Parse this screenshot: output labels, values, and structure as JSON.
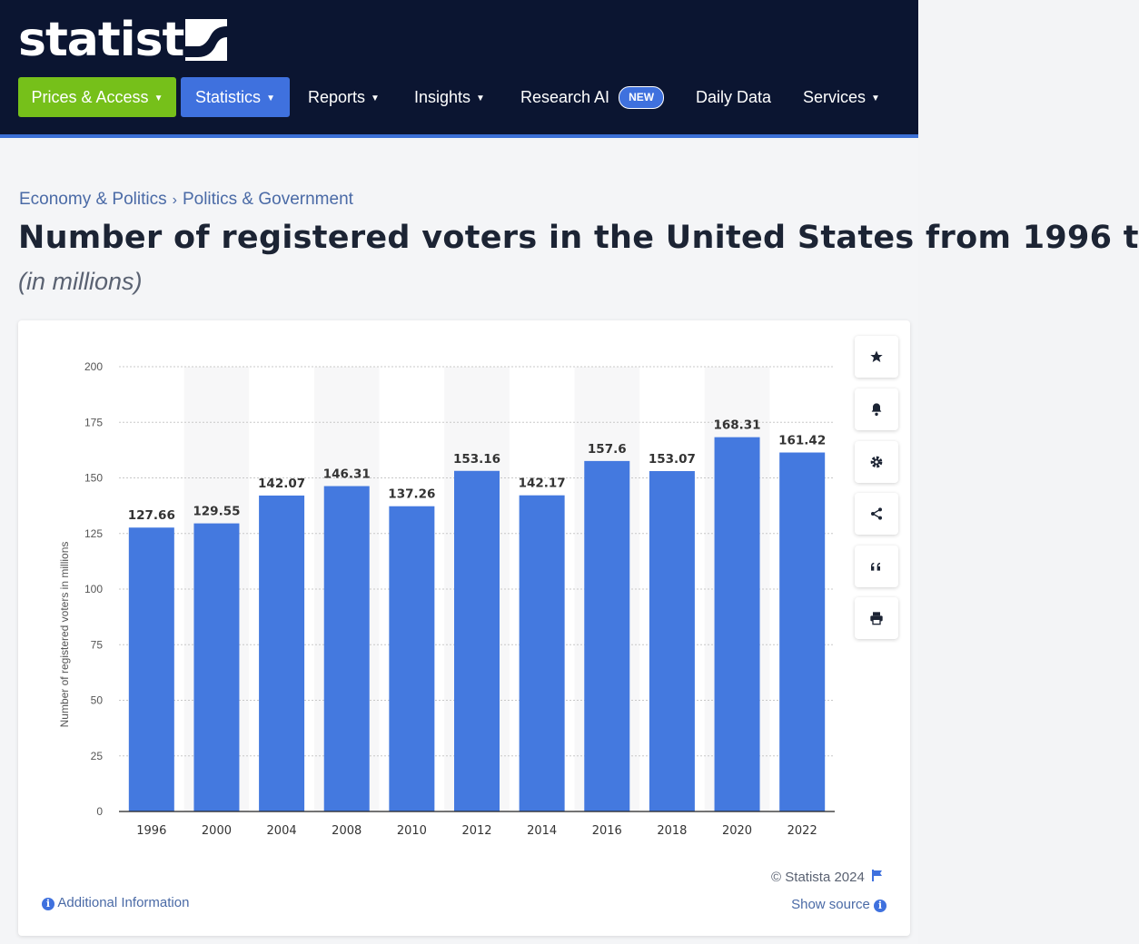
{
  "brand": {
    "logo_text": "statista"
  },
  "nav": {
    "prices_access": "Prices & Access",
    "statistics": "Statistics",
    "reports": "Reports",
    "insights": "Insights",
    "research_ai": "Research AI",
    "new_badge": "NEW",
    "daily_data": "Daily Data",
    "services": "Services"
  },
  "breadcrumb": {
    "level1": "Economy & Politics",
    "separator": "›",
    "level2": "Politics & Government"
  },
  "page": {
    "title": "Number of registered voters in the United States from 1996 t",
    "subtitle": "(in millions)"
  },
  "footer": {
    "copyright": "© Statista 2024",
    "show_source": "Show source",
    "additional_information": "Additional Information"
  },
  "colors": {
    "header_bg": "#0b1531",
    "prices_btn": "#76c01a",
    "statistics_btn": "#3f71de",
    "bar": "#4479df",
    "link": "#4a6aa6"
  },
  "chart_data": {
    "type": "bar",
    "title": "",
    "xlabel": "",
    "ylabel": "Number of registered voters in millions",
    "categories": [
      "1996",
      "2000",
      "2004",
      "2008",
      "2010",
      "2012",
      "2014",
      "2016",
      "2018",
      "2020",
      "2022"
    ],
    "values": [
      127.66,
      129.55,
      142.07,
      146.31,
      137.26,
      153.16,
      142.17,
      157.6,
      153.07,
      168.31,
      161.42
    ],
    "value_labels": [
      "127.66",
      "129.55",
      "142.07",
      "146.31",
      "137.26",
      "153.16",
      "142.17",
      "157.6",
      "153.07",
      "168.31",
      "161.42"
    ],
    "ylim": [
      0,
      200
    ],
    "yticks": [
      "0",
      "25",
      "50",
      "75",
      "100",
      "125",
      "150",
      "175",
      "200"
    ],
    "grid": true,
    "legend": "none"
  }
}
